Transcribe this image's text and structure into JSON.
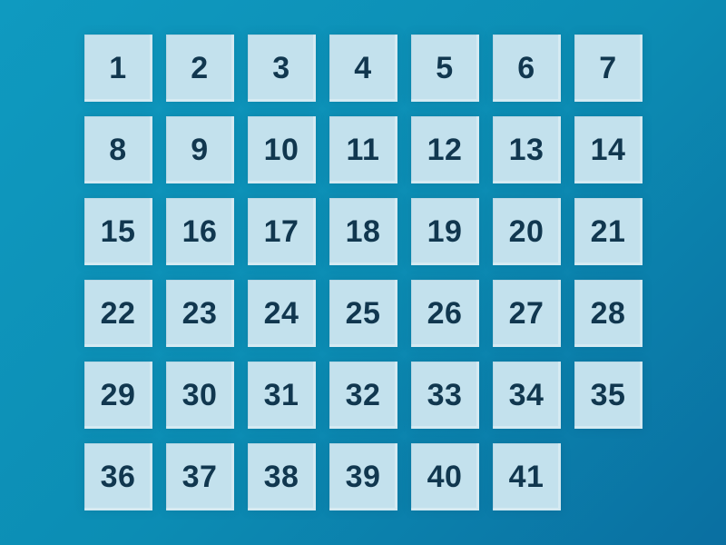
{
  "colors": {
    "background_gradient_start": "#0f9ac0",
    "background_gradient_mid": "#0c8db4",
    "background_gradient_end": "#0a6fa1",
    "tile_background": "#c3e1ed",
    "tile_text": "#11374f"
  },
  "grid": {
    "columns": 7,
    "rows": 6,
    "tile_count": 41,
    "tiles": [
      "1",
      "2",
      "3",
      "4",
      "5",
      "6",
      "7",
      "8",
      "9",
      "10",
      "11",
      "12",
      "13",
      "14",
      "15",
      "16",
      "17",
      "18",
      "19",
      "20",
      "21",
      "22",
      "23",
      "24",
      "25",
      "26",
      "27",
      "28",
      "29",
      "30",
      "31",
      "32",
      "33",
      "34",
      "35",
      "36",
      "37",
      "38",
      "39",
      "40",
      "41"
    ]
  }
}
